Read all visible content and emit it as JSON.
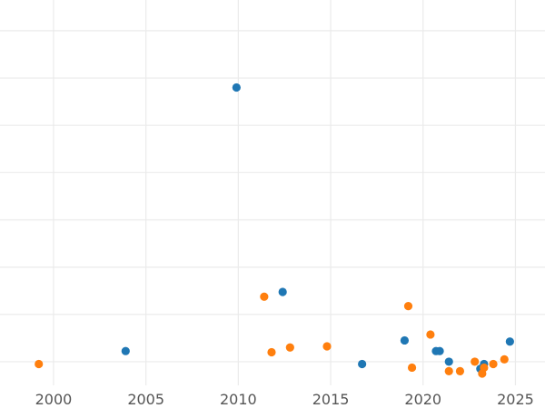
{
  "chart_data": {
    "type": "scatter",
    "title": "",
    "xlabel": "",
    "ylabel": "",
    "xlim": [
      1997.1,
      2026.6
    ],
    "x_ticks": [
      2000,
      2005,
      2010,
      2015,
      2020,
      2025
    ],
    "x_tick_labels": [
      "2000",
      "2005",
      "2010",
      "2015",
      "2020",
      "2025"
    ],
    "ylim": [
      -1.0,
      15.3
    ],
    "y_grid": [
      0,
      2,
      4,
      6,
      8,
      10,
      12,
      14
    ],
    "y_tick_labels": [],
    "grid": true,
    "legend": "none",
    "series": [
      {
        "color": "#1f77b4",
        "points": [
          {
            "x": 2003.9,
            "y": 0.45
          },
          {
            "x": 2009.9,
            "y": 11.6
          },
          {
            "x": 2012.4,
            "y": 2.95
          },
          {
            "x": 2016.7,
            "y": -0.1
          },
          {
            "x": 2019.0,
            "y": 0.9
          },
          {
            "x": 2020.7,
            "y": 0.45
          },
          {
            "x": 2020.9,
            "y": 0.45
          },
          {
            "x": 2021.4,
            "y": 0.0
          },
          {
            "x": 2023.1,
            "y": -0.3
          },
          {
            "x": 2023.3,
            "y": -0.1
          },
          {
            "x": 2024.7,
            "y": 0.85
          }
        ]
      },
      {
        "color": "#ff7f0e",
        "points": [
          {
            "x": 1999.2,
            "y": -0.1
          },
          {
            "x": 2011.4,
            "y": 2.75
          },
          {
            "x": 2011.8,
            "y": 0.4
          },
          {
            "x": 2012.8,
            "y": 0.6
          },
          {
            "x": 2014.8,
            "y": 0.65
          },
          {
            "x": 2019.2,
            "y": 2.35
          },
          {
            "x": 2019.4,
            "y": -0.25
          },
          {
            "x": 2020.4,
            "y": 1.15
          },
          {
            "x": 2021.4,
            "y": -0.4
          },
          {
            "x": 2022.0,
            "y": -0.4
          },
          {
            "x": 2022.8,
            "y": 0.0
          },
          {
            "x": 2023.2,
            "y": -0.5
          },
          {
            "x": 2023.3,
            "y": -0.25
          },
          {
            "x": 2023.8,
            "y": -0.1
          },
          {
            "x": 2024.4,
            "y": 0.1
          }
        ]
      }
    ]
  }
}
